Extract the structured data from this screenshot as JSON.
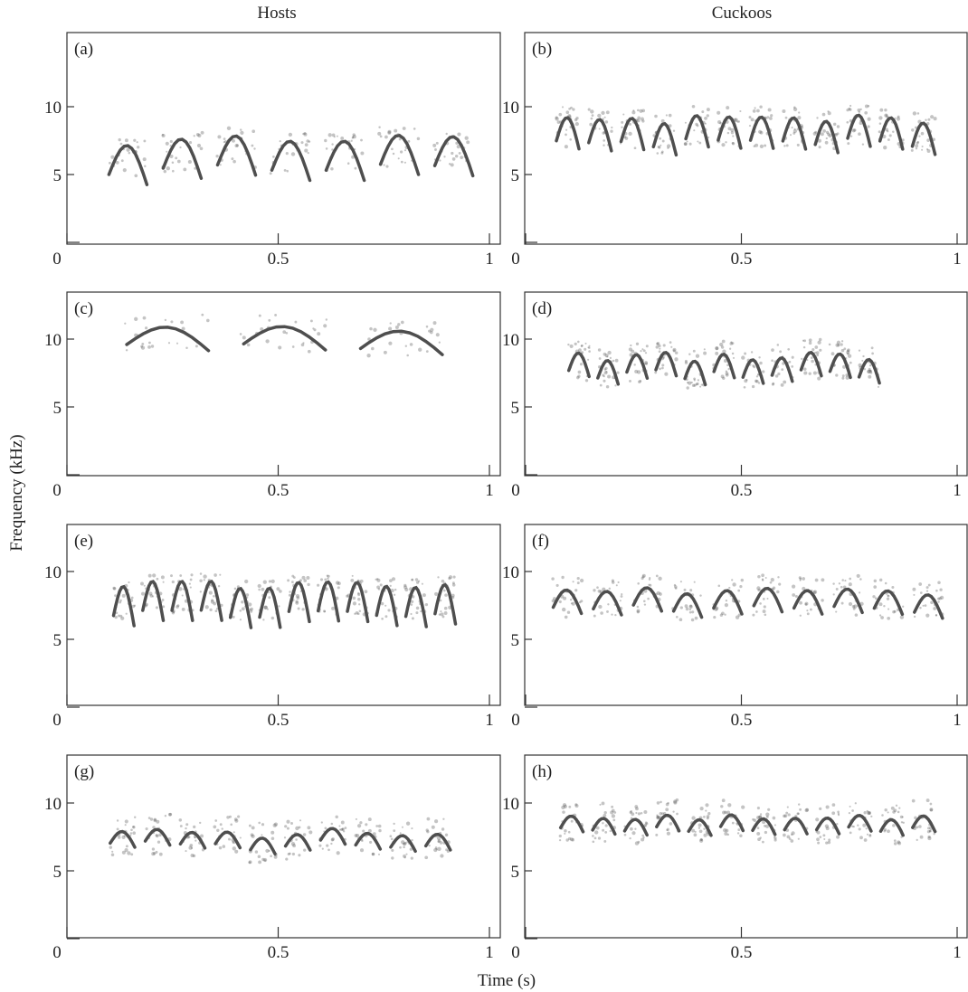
{
  "figure": {
    "columns": [
      "Hosts",
      "Cuckoos"
    ],
    "y_label": "Frequency (kHz)",
    "x_label": "Time (s)",
    "panels": [
      {
        "label": "(a)",
        "yticks": [
          5,
          10
        ],
        "xticks": [
          0,
          0.5,
          1
        ]
      },
      {
        "label": "(b)",
        "yticks": [
          5,
          10
        ],
        "xticks": [
          0,
          0.5,
          1
        ]
      },
      {
        "label": "(c)",
        "yticks": [
          5,
          10
        ],
        "xticks": [
          0,
          0.5,
          1
        ]
      },
      {
        "label": "(d)",
        "yticks": [
          5,
          10
        ],
        "xticks": [
          0,
          0.5,
          1
        ]
      },
      {
        "label": "(e)",
        "yticks": [
          5,
          10
        ],
        "xticks": [
          0,
          0.5,
          1
        ]
      },
      {
        "label": "(f)",
        "yticks": [
          5,
          10
        ],
        "xticks": [
          0,
          0.5,
          1
        ]
      },
      {
        "label": "(g)",
        "yticks": [
          5,
          10
        ],
        "xticks": [
          0,
          0.5,
          1
        ]
      },
      {
        "label": "(h)",
        "yticks": [
          5,
          10
        ],
        "xticks": [
          0,
          0.5,
          1
        ]
      }
    ]
  }
}
